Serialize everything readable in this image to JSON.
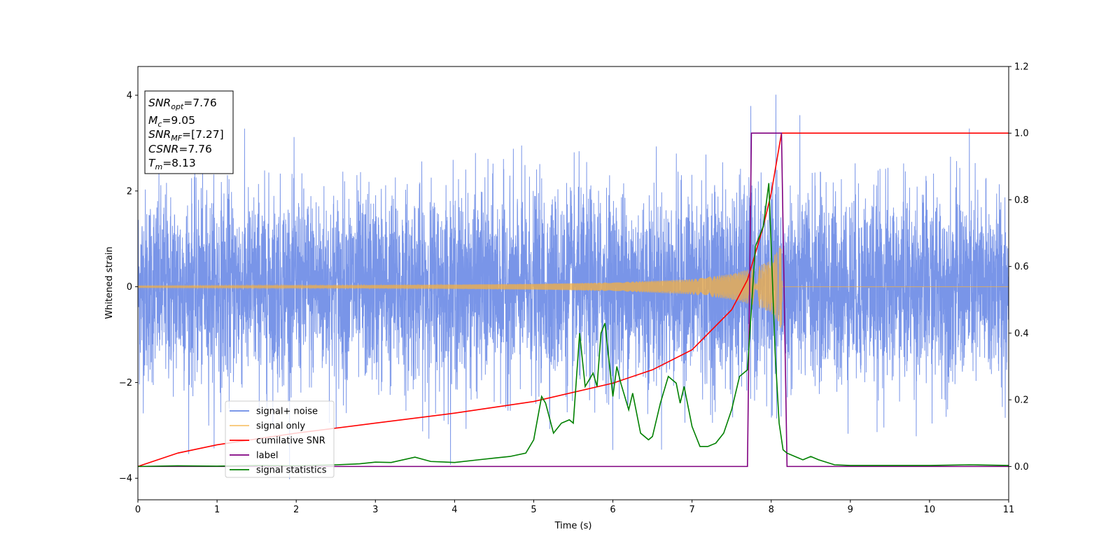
{
  "chart_data": {
    "type": "line",
    "xlabel": "Time (s)",
    "ylabel": "Whitened strain",
    "xlim": [
      0,
      11
    ],
    "ylim_left": [
      -4.45,
      4.6
    ],
    "ylim_right": [
      -0.1,
      1.2
    ],
    "x_ticks": [
      0,
      1,
      2,
      3,
      4,
      5,
      6,
      7,
      8,
      9,
      10,
      11
    ],
    "y_ticks_left": [
      -4,
      -2,
      0,
      2,
      4
    ],
    "y_ticks_right": [
      0.0,
      0.2,
      0.4,
      0.6,
      0.8,
      1.0,
      1.2
    ],
    "grid": false,
    "legend_position": "lower-left",
    "annotation": {
      "snr_opt": {
        "base": "SNR",
        "sub": "opt",
        "value": "=7.76"
      },
      "mc": {
        "base": "M",
        "sub": "c",
        "value": "=9.05"
      },
      "snr_mf": {
        "base": "SNR",
        "sub": "MF",
        "value": "=[7.27]"
      },
      "csnr": {
        "base": "CSNR",
        "value": "=7.76"
      },
      "tm": {
        "base": "T",
        "sub": "m",
        "value": "=8.13"
      }
    },
    "series": [
      {
        "name": "signal+ noise",
        "color": "#6a8ae6",
        "axis": "left",
        "description_values": {
          "amplitude_envelope": [
            -4.05,
            4.18
          ],
          "typical_std": 1.0
        }
      },
      {
        "name": "signal only",
        "color": "#f5b041",
        "axis": "left",
        "envelope": {
          "t": [
            0,
            1,
            2,
            3,
            4,
            5,
            6,
            7,
            7.5,
            7.8,
            8.0,
            8.13,
            8.14,
            11
          ],
          "amp": [
            0.02,
            0.025,
            0.03,
            0.035,
            0.045,
            0.06,
            0.09,
            0.16,
            0.27,
            0.4,
            0.55,
            0.9,
            0.0,
            0.0
          ]
        }
      },
      {
        "name": "cumilative SNR",
        "color": "#ff0000",
        "axis": "right",
        "x": [
          0,
          0.5,
          1,
          2,
          3,
          4,
          5,
          6,
          6.5,
          7,
          7.5,
          7.7,
          7.9,
          8.0,
          8.13,
          8.14,
          11
        ],
        "y": [
          0.0,
          0.04,
          0.065,
          0.1,
          0.13,
          0.16,
          0.195,
          0.25,
          0.29,
          0.35,
          0.47,
          0.56,
          0.72,
          0.82,
          1.0,
          1.0,
          1.0
        ]
      },
      {
        "name": "label",
        "color": "#800080",
        "axis": "right",
        "x": [
          0,
          7.7,
          7.75,
          8.13,
          8.2,
          11
        ],
        "y": [
          0,
          0,
          1,
          1,
          0,
          0
        ]
      },
      {
        "name": "signal statistics",
        "color": "#008000",
        "axis": "right",
        "x": [
          0,
          0.5,
          1,
          1.5,
          2,
          2.5,
          2.8,
          3.0,
          3.2,
          3.5,
          3.7,
          4.0,
          4.3,
          4.5,
          4.7,
          4.9,
          5.0,
          5.1,
          5.15,
          5.25,
          5.35,
          5.45,
          5.5,
          5.58,
          5.65,
          5.75,
          5.8,
          5.85,
          5.9,
          6.0,
          6.05,
          6.1,
          6.2,
          6.25,
          6.35,
          6.45,
          6.5,
          6.6,
          6.7,
          6.8,
          6.85,
          6.9,
          7.0,
          7.1,
          7.2,
          7.3,
          7.4,
          7.5,
          7.6,
          7.7,
          7.8,
          7.9,
          7.97,
          8.05,
          8.1,
          8.15,
          8.2,
          8.3,
          8.4,
          8.5,
          8.6,
          8.8,
          9.0,
          9.5,
          10.0,
          10.5,
          11.0
        ],
        "y": [
          0,
          0.002,
          0.001,
          0.003,
          0.002,
          0.005,
          0.008,
          0.013,
          0.012,
          0.028,
          0.015,
          0.012,
          0.02,
          0.025,
          0.03,
          0.04,
          0.08,
          0.21,
          0.19,
          0.1,
          0.13,
          0.14,
          0.13,
          0.4,
          0.24,
          0.28,
          0.24,
          0.4,
          0.43,
          0.21,
          0.3,
          0.25,
          0.17,
          0.22,
          0.1,
          0.08,
          0.09,
          0.19,
          0.27,
          0.25,
          0.19,
          0.24,
          0.12,
          0.06,
          0.06,
          0.07,
          0.1,
          0.17,
          0.27,
          0.29,
          0.66,
          0.72,
          0.85,
          0.34,
          0.13,
          0.05,
          0.04,
          0.03,
          0.02,
          0.03,
          0.02,
          0.005,
          0.003,
          0.003,
          0.003,
          0.005,
          0.003
        ]
      }
    ]
  }
}
